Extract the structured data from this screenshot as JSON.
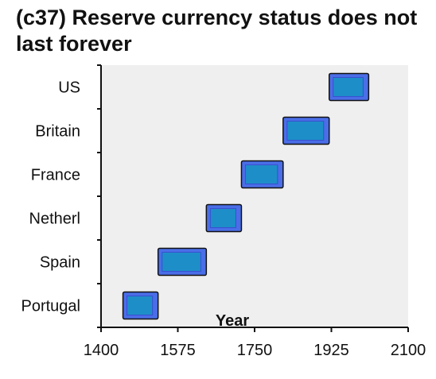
{
  "title": "(c37) Reserve currency status does not last forever",
  "chart_data": {
    "type": "bar",
    "orientation": "horizontal-range",
    "title": "(c37) Reserve currency status does not last forever",
    "xlabel": "Year",
    "ylabel": "",
    "xlim": [
      1400,
      2100
    ],
    "xticks": [
      1400,
      1575,
      1750,
      1925,
      2100
    ],
    "categories": [
      "Portugal",
      "Spain",
      "Netherl",
      "France",
      "Britain",
      "US"
    ],
    "series": [
      {
        "values": [
          {
            "start": 1450,
            "end": 1530
          },
          {
            "start": 1530,
            "end": 1640
          },
          {
            "start": 1640,
            "end": 1720
          },
          {
            "start": 1720,
            "end": 1815
          },
          {
            "start": 1815,
            "end": 1920
          },
          {
            "start": 1920,
            "end": 2010
          }
        ]
      }
    ],
    "grid": false,
    "colors": {
      "plot_background": "#efefef",
      "bar_fill": "#4a6ee8",
      "bar_inner": "#1e8ec8",
      "bar_edge": "#111111",
      "axis": "#111111"
    }
  }
}
